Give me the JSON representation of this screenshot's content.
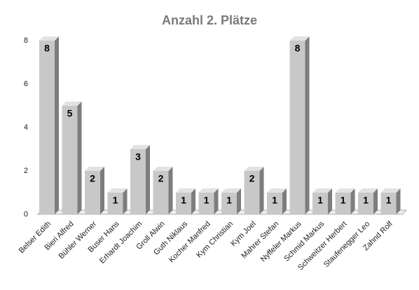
{
  "chart_data": {
    "type": "bar3d",
    "title": "Anzahl 2. Plätze",
    "categories": [
      "Belser Edith",
      "Bieri Alfred",
      "Bühler Werner",
      "Buser Hans",
      "Erhardt Joachim",
      "Groll Alwin",
      "Guth Niklaus",
      "Kocher Manfred",
      "Kym Christian",
      "Kym Joel",
      "Mahrer Stefan",
      "Nyffeler Markus",
      "Schmid Markus",
      "Schweitzer Herbert",
      "Staufenegger Leo",
      "Zahnd Rolf"
    ],
    "values": [
      8,
      5,
      2,
      1,
      3,
      2,
      1,
      1,
      1,
      2,
      1,
      8,
      1,
      1,
      1,
      1
    ],
    "color": "#c8c8c8",
    "ylim": [
      0,
      8
    ],
    "yticks": [
      0,
      2,
      4,
      6,
      8
    ],
    "grid": false
  }
}
